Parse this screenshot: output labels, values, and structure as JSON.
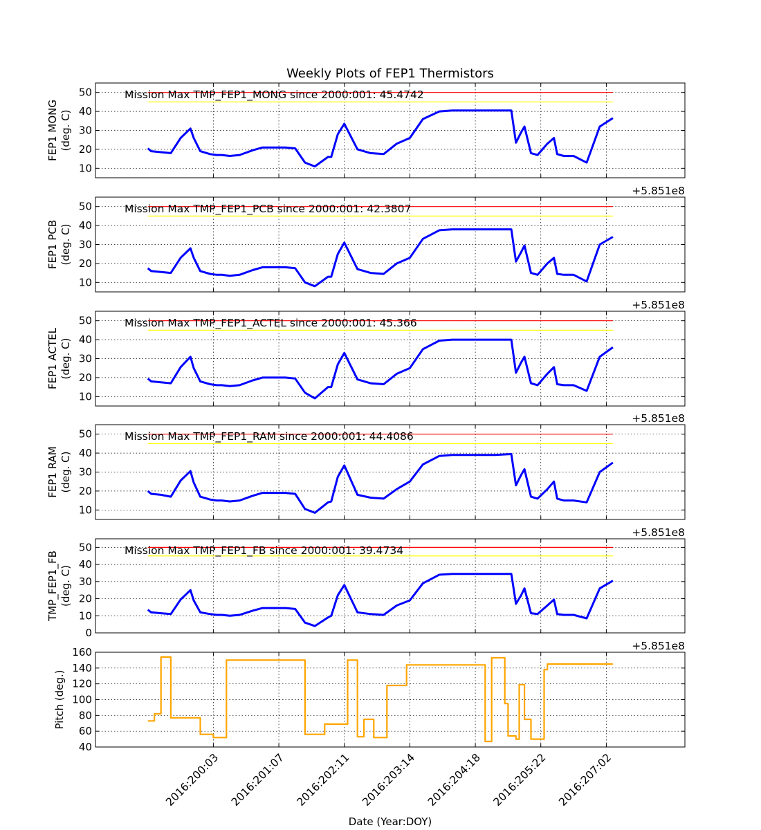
{
  "figure": {
    "title": "Weekly Plots of FEP1 Thermistors",
    "xlabel": "Date (Year:DOY)",
    "x_tick_labels": [
      "2016:200:03",
      "2016:201:07",
      "2016:202:11",
      "2016:203:14",
      "2016:204:18",
      "2016:205:22",
      "2016:207:02"
    ],
    "offset_label": "+5.851e8",
    "limit_colors": {
      "red": "#ff0000",
      "yellow": "#ffff00"
    },
    "series_color": "#0000ff",
    "pitch_color": "#ffa500",
    "grid": "dotted"
  },
  "chart_data": [
    {
      "type": "line",
      "ylabel": [
        "FEP1 MONG",
        "(deg. C)"
      ],
      "annotation": "Mission Max TMP_FEP1_MONG since 2000:001: 45.4742",
      "ylim": [
        5,
        55
      ],
      "yticks": [
        10,
        20,
        30,
        40,
        50
      ],
      "limits": {
        "red": 50,
        "yellow": 45
      },
      "x": [
        0,
        0.05,
        0.2,
        0.35,
        0.5,
        0.65,
        0.7,
        0.8,
        0.95,
        1.05,
        1.13,
        1.25,
        1.4,
        1.6,
        1.75,
        1.9,
        2.0,
        2.1,
        2.25,
        2.4,
        2.55,
        2.75,
        2.8,
        2.9,
        3.0,
        3.2,
        3.4,
        3.6,
        3.8,
        4.0,
        4.2,
        4.45,
        4.65,
        4.7,
        4.75,
        4.9,
        4.95,
        5.15,
        5.3,
        5.55,
        5.62,
        5.7,
        5.75,
        5.85,
        5.95,
        6.1,
        6.2,
        6.25,
        6.35,
        6.5,
        6.7,
        6.9,
        7.1
      ],
      "y": [
        20.5,
        19,
        18.5,
        18,
        26,
        31,
        26,
        19,
        17.5,
        17,
        17,
        16.5,
        17,
        19.5,
        21,
        21,
        21,
        21,
        20.5,
        13,
        11,
        16,
        16,
        28,
        33.5,
        20,
        18,
        17.5,
        23,
        26,
        36,
        40,
        40.5,
        40.5,
        40.5,
        40.5,
        40.5,
        40.5,
        40.5,
        40.5,
        23.5,
        29,
        32,
        18,
        17,
        23,
        26,
        17.5,
        16.5,
        16.5,
        13,
        32,
        36.5
      ]
    },
    {
      "type": "line",
      "ylabel": [
        "FEP1 PCB",
        "(deg. C)"
      ],
      "annotation": "Mission Max TMP_FEP1_PCB since 2000:001: 42.3807",
      "ylim": [
        5,
        55
      ],
      "yticks": [
        10,
        20,
        30,
        40,
        50
      ],
      "limits": {
        "red": 50,
        "yellow": 45
      },
      "x": [
        0,
        0.05,
        0.2,
        0.35,
        0.5,
        0.65,
        0.7,
        0.8,
        0.95,
        1.05,
        1.13,
        1.25,
        1.4,
        1.6,
        1.75,
        1.9,
        2.0,
        2.1,
        2.25,
        2.4,
        2.55,
        2.75,
        2.8,
        2.9,
        3.0,
        3.2,
        3.4,
        3.6,
        3.8,
        4.0,
        4.2,
        4.45,
        4.65,
        4.7,
        4.75,
        4.9,
        4.95,
        5.15,
        5.3,
        5.55,
        5.62,
        5.7,
        5.75,
        5.85,
        5.95,
        6.1,
        6.2,
        6.25,
        6.35,
        6.5,
        6.7,
        6.9,
        7.1
      ],
      "y": [
        17.5,
        16,
        15.5,
        15,
        23,
        28,
        23,
        16,
        14.5,
        14,
        14,
        13.5,
        14,
        16.5,
        18,
        18,
        18,
        18,
        17.5,
        10,
        8,
        13,
        13,
        25,
        31,
        17,
        15,
        14.5,
        20,
        23,
        33,
        37.5,
        38,
        38,
        38,
        38,
        38,
        38,
        38,
        38,
        21,
        26,
        29.5,
        15,
        14,
        20,
        23,
        14.5,
        14,
        14,
        10.5,
        30,
        34
      ]
    },
    {
      "type": "line",
      "ylabel": [
        "FEP1 ACTEL",
        "(deg. C)"
      ],
      "annotation": "Mission Max TMP_FEP1_ACTEL since 2000:001: 45.366",
      "ylim": [
        5,
        55
      ],
      "yticks": [
        10,
        20,
        30,
        40,
        50
      ],
      "limits": {
        "red": 50,
        "yellow": 45
      },
      "x": [
        0,
        0.05,
        0.2,
        0.35,
        0.5,
        0.65,
        0.7,
        0.8,
        0.95,
        1.05,
        1.13,
        1.25,
        1.4,
        1.6,
        1.75,
        1.9,
        2.0,
        2.1,
        2.25,
        2.4,
        2.55,
        2.75,
        2.8,
        2.9,
        3.0,
        3.2,
        3.4,
        3.6,
        3.8,
        4.0,
        4.2,
        4.45,
        4.65,
        4.7,
        4.75,
        4.9,
        4.95,
        5.15,
        5.3,
        5.55,
        5.62,
        5.7,
        5.75,
        5.85,
        5.95,
        6.1,
        6.2,
        6.25,
        6.35,
        6.5,
        6.7,
        6.9,
        7.1
      ],
      "y": [
        19.5,
        18,
        17.5,
        17,
        25.5,
        31,
        25,
        18,
        16.5,
        16,
        16,
        15.5,
        16,
        18.5,
        20,
        20,
        20,
        20,
        19.5,
        12,
        9,
        15,
        15,
        27,
        33,
        19,
        17,
        16.5,
        22,
        25,
        35,
        39.5,
        40,
        40,
        40,
        40,
        40,
        40,
        40,
        40,
        22.5,
        28,
        31,
        17,
        16,
        22,
        25.5,
        16.5,
        16,
        16,
        13,
        31,
        36
      ]
    },
    {
      "type": "line",
      "ylabel": [
        "FEP1 RAM",
        "(deg. C)"
      ],
      "annotation": "Mission Max TMP_FEP1_RAM since 2000:001: 44.4086",
      "ylim": [
        5,
        55
      ],
      "yticks": [
        10,
        20,
        30,
        40,
        50
      ],
      "limits": {
        "red": 50,
        "yellow": 45
      },
      "x": [
        0,
        0.05,
        0.2,
        0.35,
        0.5,
        0.65,
        0.7,
        0.8,
        0.95,
        1.05,
        1.13,
        1.25,
        1.4,
        1.6,
        1.75,
        1.9,
        2.0,
        2.1,
        2.25,
        2.4,
        2.55,
        2.75,
        2.8,
        2.9,
        3.0,
        3.2,
        3.4,
        3.6,
        3.8,
        4.0,
        4.2,
        4.45,
        4.65,
        4.7,
        4.75,
        4.9,
        4.95,
        5.15,
        5.3,
        5.55,
        5.62,
        5.7,
        5.75,
        5.85,
        5.95,
        6.1,
        6.2,
        6.25,
        6.35,
        6.5,
        6.7,
        6.9,
        7.1
      ],
      "y": [
        20,
        18.5,
        18,
        17,
        25.5,
        30.5,
        24.5,
        17,
        15.5,
        15,
        15,
        14.5,
        15,
        17.5,
        19,
        19,
        19,
        19,
        18.5,
        10.5,
        8.5,
        14,
        14.5,
        27.5,
        33.5,
        18,
        16.5,
        16,
        21,
        25,
        34,
        38.5,
        39,
        39,
        39,
        39,
        39,
        39,
        39,
        39.5,
        23,
        28.5,
        31.5,
        17,
        16,
        21,
        25,
        16,
        15,
        15,
        14,
        30,
        35
      ]
    },
    {
      "type": "line",
      "ylabel": [
        "TMP_FEP1_FB",
        "(deg. C)"
      ],
      "annotation": "Mission Max TMP_FEP1_FB since 2000:001: 39.4734",
      "ylim": [
        0,
        55
      ],
      "yticks": [
        0,
        10,
        20,
        30,
        40,
        50
      ],
      "limits": {
        "red": 50,
        "yellow": 45
      },
      "x": [
        0,
        0.05,
        0.2,
        0.35,
        0.5,
        0.65,
        0.7,
        0.8,
        0.95,
        1.05,
        1.13,
        1.25,
        1.4,
        1.6,
        1.75,
        1.9,
        2.0,
        2.1,
        2.25,
        2.4,
        2.55,
        2.75,
        2.8,
        2.9,
        3.0,
        3.2,
        3.4,
        3.6,
        3.8,
        4.0,
        4.2,
        4.45,
        4.65,
        4.7,
        4.75,
        4.9,
        4.95,
        5.15,
        5.3,
        5.55,
        5.62,
        5.7,
        5.75,
        5.85,
        5.95,
        6.1,
        6.2,
        6.25,
        6.35,
        6.5,
        6.7,
        6.9,
        7.1
      ],
      "y": [
        13.5,
        12,
        11.5,
        11,
        19.5,
        25,
        19,
        12,
        11,
        10.5,
        10.5,
        10,
        10.5,
        13,
        14.5,
        14.5,
        14.5,
        14.5,
        14,
        6,
        4,
        9,
        10,
        22,
        28,
        12,
        11,
        10.5,
        16,
        19,
        29,
        34,
        34.5,
        34.5,
        34.5,
        34.5,
        34.5,
        34.5,
        34.5,
        34.5,
        17,
        22,
        26,
        11.5,
        11,
        16,
        19.5,
        11,
        10.5,
        10.5,
        8.5,
        26,
        30.5
      ]
    },
    {
      "type": "line",
      "ylabel": [
        "Pitch (deg.)"
      ],
      "ylim": [
        40,
        160
      ],
      "yticks": [
        40,
        60,
        80,
        100,
        120,
        140,
        160
      ],
      "x": [
        0,
        0.05,
        0.1,
        0.1,
        0.2,
        0.2,
        0.35,
        0.35,
        0.55,
        0.55,
        0.8,
        0.8,
        1.0,
        1.0,
        1.2,
        1.2,
        2.1,
        2.1,
        2.4,
        2.4,
        2.7,
        2.7,
        2.8,
        2.8,
        3.05,
        3.05,
        3.2,
        3.2,
        3.3,
        3.3,
        3.45,
        3.45,
        3.65,
        3.65,
        3.95,
        3.95,
        5.15,
        5.15,
        5.25,
        5.25,
        5.45,
        5.45,
        5.5,
        5.5,
        5.62,
        5.62,
        5.67,
        5.67,
        5.75,
        5.75,
        5.85,
        5.85,
        6.05,
        6.05,
        6.1,
        6.1,
        6.3,
        6.3,
        6.7,
        6.7,
        6.8,
        6.8,
        7.1
      ],
      "y": [
        73,
        73,
        73,
        82,
        82,
        154,
        154,
        77,
        77,
        77,
        77,
        56,
        56,
        52,
        52,
        150,
        150,
        150,
        150,
        56,
        56,
        69,
        69,
        69,
        69,
        150,
        150,
        53,
        53,
        75,
        75,
        52,
        52,
        118,
        118,
        144,
        144,
        47,
        47,
        153,
        153,
        95,
        95,
        54,
        54,
        50,
        50,
        119,
        119,
        75,
        75,
        50,
        50,
        138,
        138,
        145,
        145,
        145,
        145,
        145,
        145,
        145,
        145
      ]
    }
  ]
}
